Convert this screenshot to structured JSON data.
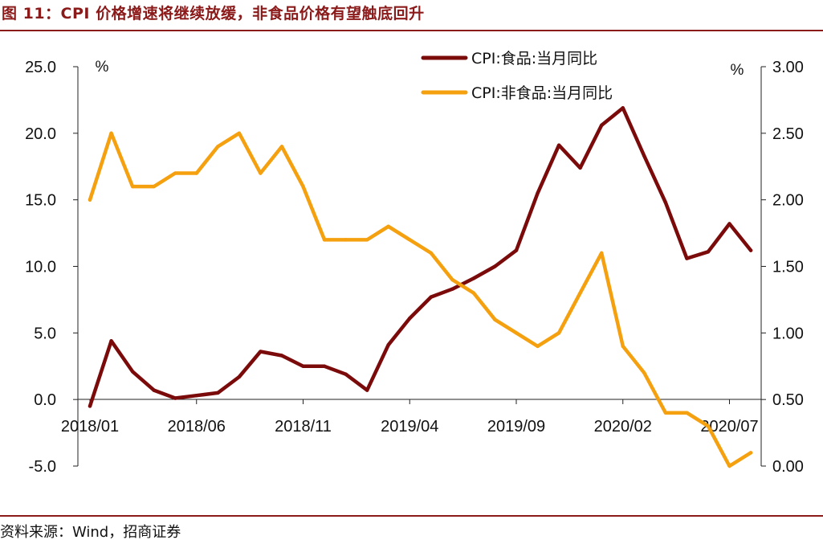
{
  "header": {
    "title": "图 11：CPI 价格增速将继续放缓，非食品价格有望触底回升"
  },
  "footer": {
    "source": "资料来源：Wind，招商证券"
  },
  "colors": {
    "brand": "#8b1a1a",
    "food_series": "#7b0a0a",
    "nonfood_series": "#f5a00f"
  },
  "chart_data": {
    "type": "line",
    "left_unit": "%",
    "right_unit": "%",
    "x": [
      "2018/01",
      "2018/02",
      "2018/03",
      "2018/04",
      "2018/05",
      "2018/06",
      "2018/07",
      "2018/08",
      "2018/09",
      "2018/10",
      "2018/11",
      "2018/12",
      "2019/01",
      "2019/02",
      "2019/03",
      "2019/04",
      "2019/05",
      "2019/06",
      "2019/07",
      "2019/08",
      "2019/09",
      "2019/10",
      "2019/11",
      "2019/12",
      "2020/01",
      "2020/02",
      "2020/03",
      "2020/04",
      "2020/05",
      "2020/06",
      "2020/07",
      "2020/08"
    ],
    "x_tick_labels": [
      "2018/01",
      "2018/06",
      "2018/11",
      "2019/04",
      "2019/09",
      "2020/02",
      "2020/07"
    ],
    "y_left": {
      "lim": [
        -5,
        25
      ],
      "ticks": [
        "25.0",
        "20.0",
        "15.0",
        "10.0",
        "5.0",
        "0.0",
        "-5.0"
      ]
    },
    "y_right": {
      "lim": [
        0,
        3
      ],
      "ticks": [
        "3.00",
        "2.50",
        "2.00",
        "1.50",
        "1.00",
        "0.50",
        "0.00"
      ]
    },
    "series": [
      {
        "name": "CPI:食品:当月同比",
        "axis": "left",
        "values": [
          -0.5,
          4.4,
          2.1,
          0.7,
          0.1,
          0.3,
          0.5,
          1.7,
          3.6,
          3.3,
          2.5,
          2.5,
          1.9,
          0.7,
          4.1,
          6.1,
          7.7,
          8.3,
          9.1,
          10.0,
          11.2,
          15.5,
          19.1,
          17.4,
          20.6,
          21.9,
          18.3,
          14.8,
          10.6,
          11.1,
          13.2,
          11.2
        ]
      },
      {
        "name": "CPI:非食品:当月同比",
        "axis": "right",
        "values": [
          2.0,
          2.5,
          2.1,
          2.1,
          2.2,
          2.2,
          2.4,
          2.5,
          2.2,
          2.4,
          2.1,
          1.7,
          1.7,
          1.7,
          1.8,
          1.7,
          1.6,
          1.4,
          1.3,
          1.1,
          1.0,
          0.9,
          1.0,
          1.3,
          1.6,
          0.9,
          0.7,
          0.4,
          0.4,
          0.3,
          0.0,
          0.1
        ]
      }
    ],
    "legend_position": "top-center",
    "grid": false
  }
}
